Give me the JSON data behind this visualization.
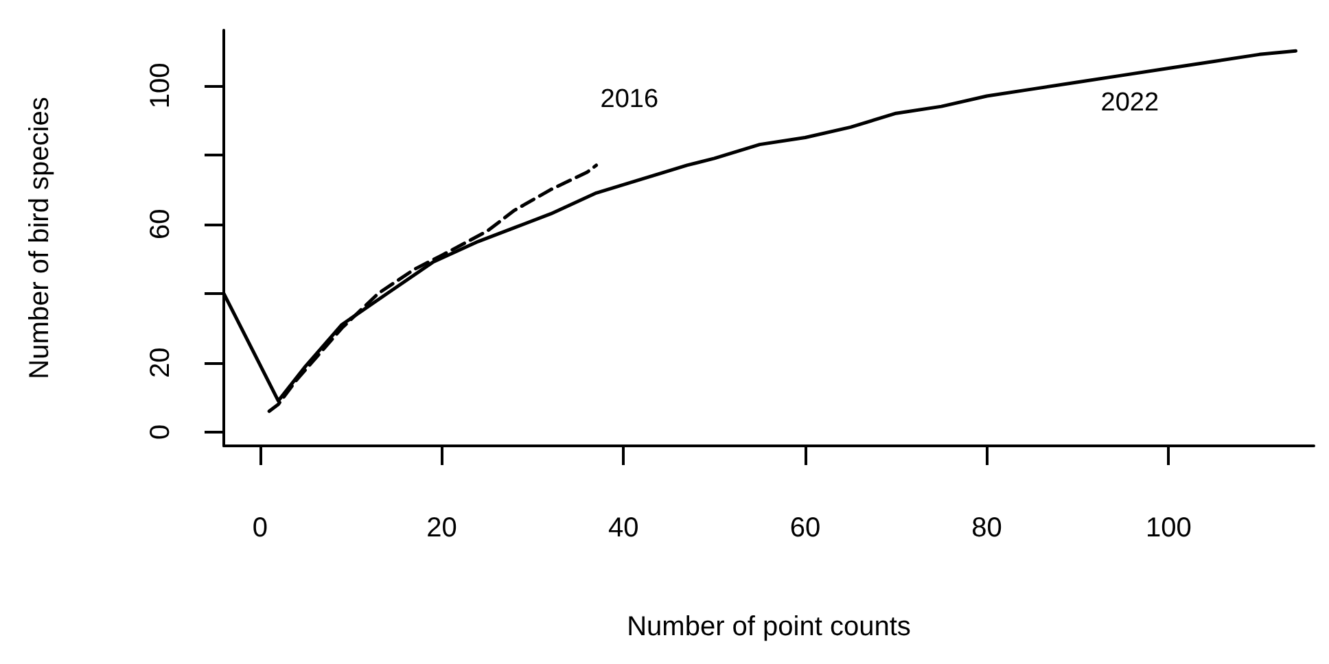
{
  "chart_data": {
    "type": "line",
    "xlabel": "Number of point counts",
    "ylabel": "Number of bird species",
    "xlim": [
      -4,
      116
    ],
    "ylim": [
      -4,
      116
    ],
    "xticks": [
      0,
      20,
      40,
      60,
      80,
      100
    ],
    "yticks": [
      0,
      20,
      {
        "value": 40,
        "label": null
      },
      60,
      {
        "value": 80,
        "label": null
      },
      100
    ],
    "grid": false,
    "marker": "none",
    "series": [
      {
        "name": "2022",
        "color": "#000000",
        "line_style": "solid",
        "x": [
          -4,
          2,
          5,
          9,
          14,
          19,
          24,
          28,
          32,
          37,
          42,
          47,
          50,
          55,
          60,
          65,
          70,
          75,
          80,
          85,
          90,
          95,
          100,
          105,
          110,
          114
        ],
        "values": [
          40,
          9,
          19,
          31,
          40,
          49,
          55,
          59,
          63,
          69,
          73,
          77,
          79,
          83,
          85,
          88,
          92,
          94,
          97,
          99,
          101,
          103,
          105,
          107,
          109,
          110
        ]
      },
      {
        "name": "2016",
        "color": "#000000",
        "line_style": "dashed",
        "x": [
          1,
          2,
          4,
          7,
          9,
          13,
          17,
          20,
          25,
          28,
          32,
          36,
          37
        ],
        "values": [
          6,
          8,
          15,
          24,
          30,
          40,
          47,
          51,
          58,
          64,
          70,
          75,
          77
        ]
      }
    ]
  }
}
